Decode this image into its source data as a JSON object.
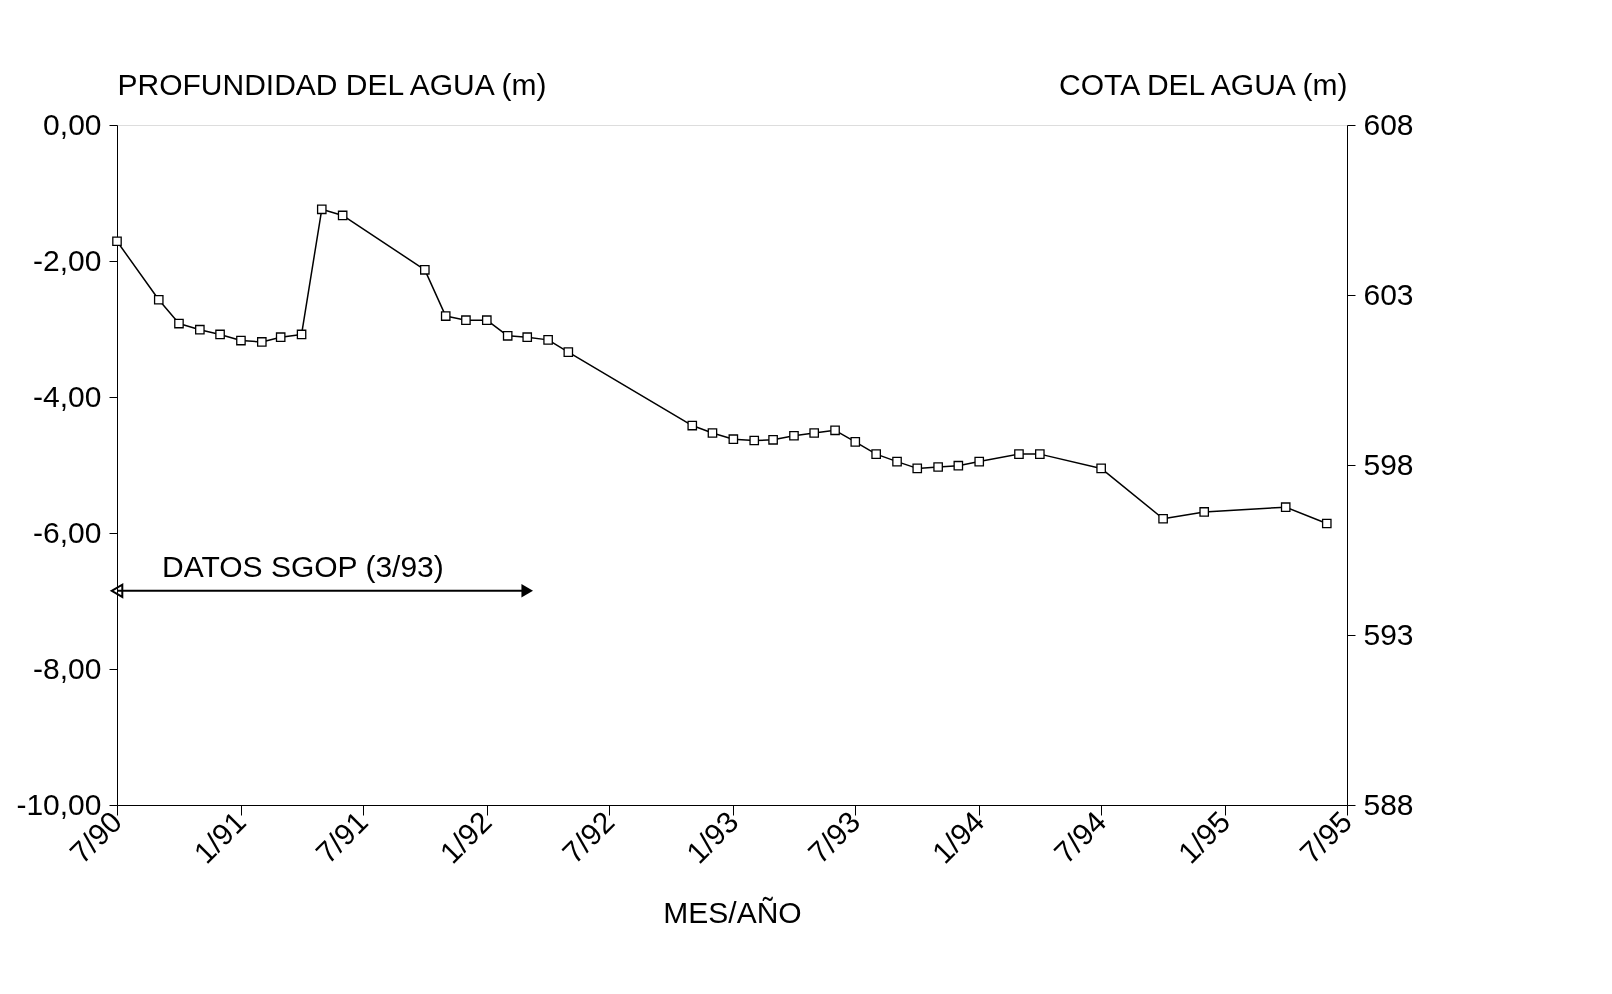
{
  "chart_data": {
    "type": "line",
    "ylabel": "PROFUNDIDAD DEL AGUA (m)",
    "y2label": "COTA DEL AGUA (m)",
    "xlabel": "MES/AÑO",
    "x": [
      "1990-07",
      "1990-09",
      "1990-10",
      "1990-11",
      "1990-12",
      "1991-01",
      "1991-02",
      "1991-03",
      "1991-04",
      "1991-05",
      "1991-06",
      "1991-10",
      "1991-11",
      "1991-12",
      "1992-01",
      "1992-02",
      "1992-03",
      "1992-04",
      "1992-05",
      "1992-11",
      "1992-12",
      "1993-01",
      "1993-02",
      "1993-03",
      "1993-04",
      "1993-05",
      "1993-06",
      "1993-07",
      "1993-08",
      "1993-09",
      "1993-10",
      "1993-11",
      "1993-12",
      "1994-01",
      "1994-03",
      "1994-04",
      "1994-07",
      "1994-10",
      "1994-12",
      "1995-04",
      "1995-06"
    ],
    "series": [
      {
        "color": "#000000",
        "values": [
          -1.71,
          -2.57,
          -2.92,
          -3.01,
          -3.08,
          -3.17,
          -3.19,
          -3.12,
          -3.08,
          -1.24,
          -1.33,
          -2.13,
          -2.81,
          -2.87,
          -2.87,
          -3.1,
          -3.12,
          -3.16,
          -3.34,
          -4.42,
          -4.53,
          -4.62,
          -4.64,
          -4.63,
          -4.57,
          -4.53,
          -4.49,
          -4.66,
          -4.84,
          -4.95,
          -5.05,
          -5.03,
          -5.01,
          -4.95,
          -4.84,
          -4.84,
          -5.05,
          -5.79,
          -5.69,
          -5.62,
          -5.86
        ]
      }
    ],
    "marker": "square",
    "line_style": "solid",
    "grid": false,
    "xlim": [
      "1990-07",
      "1995-07"
    ],
    "xticks": [
      {
        "value": "1990-07",
        "label": "7/90"
      },
      {
        "value": "1991-01",
        "label": "1/91"
      },
      {
        "value": "1991-07",
        "label": "7/91"
      },
      {
        "value": "1992-01",
        "label": "1/92"
      },
      {
        "value": "1992-07",
        "label": "7/92"
      },
      {
        "value": "1993-01",
        "label": "1/93"
      },
      {
        "value": "1993-07",
        "label": "7/93"
      },
      {
        "value": "1994-01",
        "label": "1/94"
      },
      {
        "value": "1994-07",
        "label": "7/94"
      },
      {
        "value": "1995-01",
        "label": "1/95"
      },
      {
        "value": "1995-07",
        "label": "7/95"
      }
    ],
    "ylim": [
      -10,
      0
    ],
    "yticks": [
      {
        "value": -10,
        "label": "-10,00"
      },
      {
        "value": -8,
        "label": "-8,00"
      },
      {
        "value": -6,
        "label": "-6,00"
      },
      {
        "value": -4,
        "label": "-4,00"
      },
      {
        "value": -2,
        "label": "-2,00"
      },
      {
        "value": 0,
        "label": "0,00"
      }
    ],
    "y2lim": [
      588,
      608
    ],
    "y2ticks": [
      588,
      593,
      598,
      603,
      608
    ],
    "annotations": [
      {
        "text": "DATOS SGOP (3/93)",
        "x": "1992-03",
        "y": -6.85
      }
    ]
  }
}
